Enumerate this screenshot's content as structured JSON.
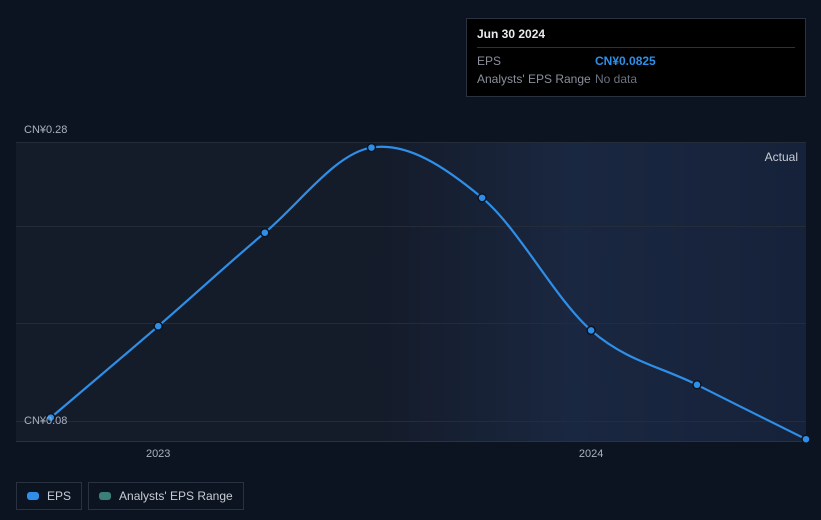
{
  "tooltip": {
    "date": "Jun 30 2024",
    "eps_label": "EPS",
    "eps_value": "CN¥0.0825",
    "range_label": "Analysts' EPS Range",
    "range_value": "No data"
  },
  "chart": {
    "type": "line",
    "ylabel_top": "CN¥0.28",
    "ylabel_bottom": "CN¥0.08",
    "ylim": [
      0.065,
      0.28
    ],
    "gridlines_y": [
      0.08,
      0.15,
      0.22,
      0.28
    ],
    "xticks": [
      {
        "label": "2023",
        "t": 0.18
      },
      {
        "label": "2024",
        "t": 0.728
      }
    ],
    "actual_label": "Actual",
    "series": {
      "eps": {
        "color": "#2f8fe8",
        "line_width": 2.2,
        "marker_radius": 4,
        "marker_fill": "#2f8fe8",
        "marker_stroke": "#0d1421",
        "points": [
          {
            "t": 0.044,
            "v": 0.0825
          },
          {
            "t": 0.18,
            "v": 0.148
          },
          {
            "t": 0.315,
            "v": 0.215
          },
          {
            "t": 0.45,
            "v": 0.276
          },
          {
            "t": 0.59,
            "v": 0.24
          },
          {
            "t": 0.728,
            "v": 0.145
          },
          {
            "t": 0.862,
            "v": 0.106
          },
          {
            "t": 1.0,
            "v": 0.067
          }
        ]
      }
    },
    "background_gradient_from": "#141b29",
    "background_gradient_to": "#16223a",
    "grid_color": "#242c3a"
  },
  "legend": {
    "items": [
      {
        "label": "EPS",
        "color": "#2f8fe8"
      },
      {
        "label": "Analysts' EPS Range",
        "color": "#3b7f7a"
      }
    ]
  }
}
